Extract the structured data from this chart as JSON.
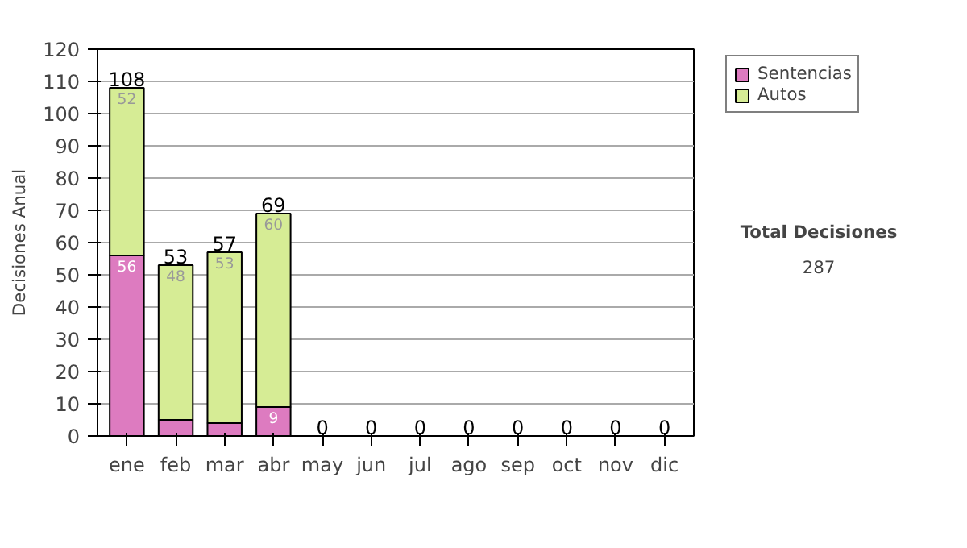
{
  "chart_data": {
    "type": "bar",
    "stacked": true,
    "ylabel": "Decisiones Anual",
    "categories": [
      "ene",
      "feb",
      "mar",
      "abr",
      "may",
      "jun",
      "jul",
      "ago",
      "sep",
      "oct",
      "nov",
      "dic"
    ],
    "series": [
      {
        "name": "Sentencias",
        "color": "#dd7bc0",
        "values": [
          56,
          5,
          4,
          9,
          0,
          0,
          0,
          0,
          0,
          0,
          0,
          0
        ],
        "value_labels": [
          "56",
          null,
          null,
          "9",
          null,
          null,
          null,
          null,
          null,
          null,
          null,
          null
        ]
      },
      {
        "name": "Autos",
        "color": "#d6ec95",
        "values": [
          52,
          48,
          53,
          60,
          0,
          0,
          0,
          0,
          0,
          0,
          0,
          0
        ],
        "value_labels": [
          "52",
          "48",
          "53",
          "60",
          null,
          null,
          null,
          null,
          null,
          null,
          null,
          null
        ]
      }
    ],
    "totals": [
      "108",
      "53",
      "57",
      "69",
      "0",
      "0",
      "0",
      "0",
      "0",
      "0",
      "0",
      "0"
    ],
    "ylim": [
      0,
      120
    ],
    "yticks": [
      0,
      10,
      20,
      30,
      40,
      50,
      60,
      70,
      80,
      90,
      100,
      110,
      120
    ],
    "grid": "y",
    "legend": "right",
    "annotations": [
      "Total Decisiones",
      "287"
    ]
  }
}
